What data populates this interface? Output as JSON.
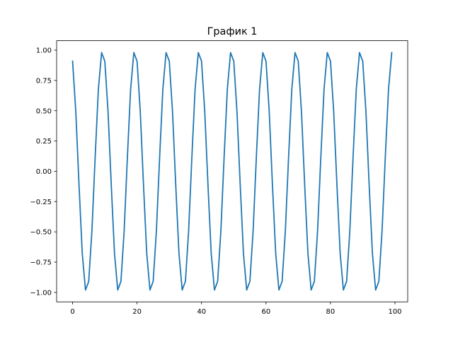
{
  "chart_data": {
    "type": "line",
    "title": "График 1",
    "xlabel": "",
    "ylabel": "",
    "xlim": [
      -4.95,
      103.95
    ],
    "ylim": [
      -1.078,
      1.078
    ],
    "xticks": [
      0,
      20,
      40,
      60,
      80,
      100
    ],
    "xtick_labels": [
      "0",
      "20",
      "40",
      "60",
      "80",
      "100"
    ],
    "yticks": [
      1.0,
      0.75,
      0.5,
      0.25,
      0.0,
      -0.25,
      -0.5,
      -0.75,
      -1.0
    ],
    "ytick_labels": [
      "1.00",
      "0.75",
      "0.50",
      "0.25",
      "0.00",
      "−0.25",
      "−0.50",
      "−0.75",
      "−1.00"
    ],
    "grid": false,
    "color": "#1f77b4",
    "series": [
      {
        "values": [
          0.909,
          0.491,
          -0.115,
          -0.677,
          -0.98,
          -0.909,
          -0.491,
          0.115,
          0.677,
          0.98,
          0.909,
          0.491,
          -0.115,
          -0.677,
          -0.98,
          -0.909,
          -0.491,
          0.115,
          0.677,
          0.98,
          0.909,
          0.491,
          -0.115,
          -0.677,
          -0.98,
          -0.909,
          -0.491,
          0.115,
          0.677,
          0.98,
          0.909,
          0.491,
          -0.115,
          -0.677,
          -0.98,
          -0.909,
          -0.491,
          0.115,
          0.677,
          0.98,
          0.909,
          0.491,
          -0.115,
          -0.677,
          -0.98,
          -0.909,
          -0.491,
          0.115,
          0.677,
          0.98,
          0.909,
          0.491,
          -0.115,
          -0.677,
          -0.98,
          -0.909,
          -0.491,
          0.115,
          0.677,
          0.98,
          0.909,
          0.491,
          -0.115,
          -0.677,
          -0.98,
          -0.909,
          -0.491,
          0.115,
          0.677,
          0.98,
          0.909,
          0.491,
          -0.115,
          -0.677,
          -0.98,
          -0.909,
          -0.491,
          0.115,
          0.677,
          0.98,
          0.909,
          0.491,
          -0.115,
          -0.677,
          -0.98,
          -0.909,
          -0.491,
          0.115,
          0.677,
          0.98,
          0.909,
          0.491,
          -0.115,
          -0.677,
          -0.98,
          -0.909,
          -0.491,
          0.115,
          0.677,
          0.98
        ]
      }
    ]
  }
}
